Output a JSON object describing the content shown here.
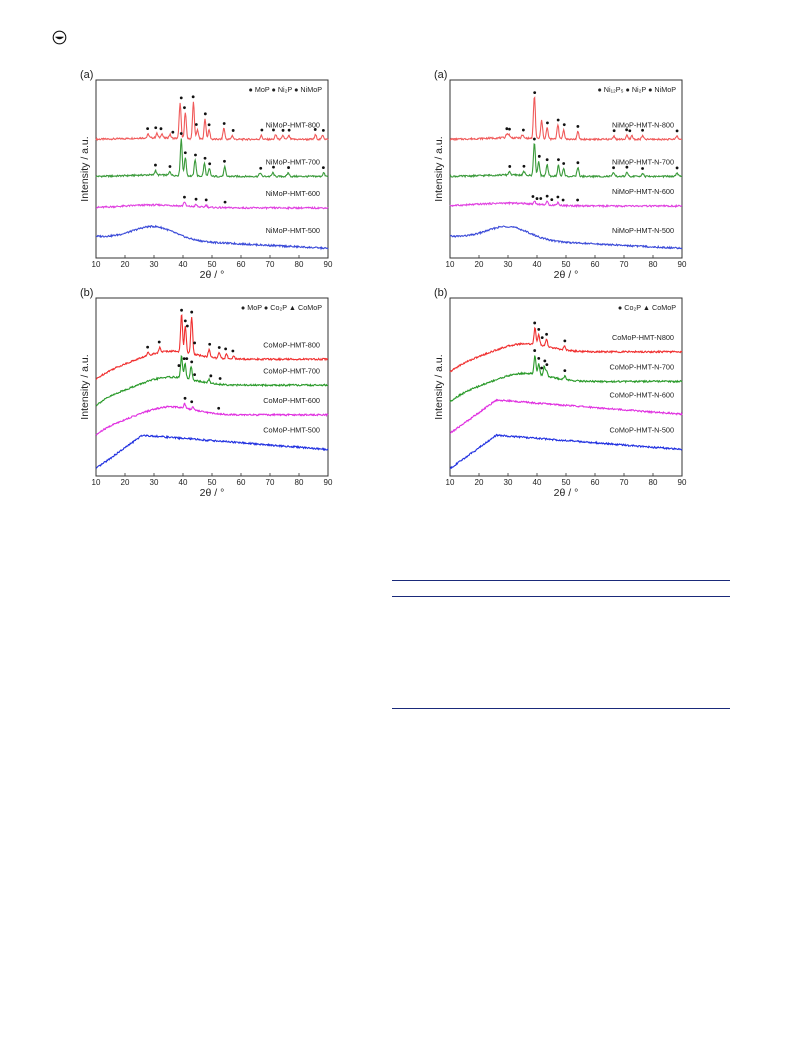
{
  "page": {
    "icon": "circle-logo-icon"
  },
  "chart_data": [
    {
      "id": "ni-hmt",
      "type": "line",
      "panel_label": "(a)",
      "ylabel": "Intensity / a.u.",
      "xlabel": "2θ / °",
      "xlim": [
        10,
        90
      ],
      "xticks": [
        10,
        20,
        30,
        40,
        50,
        60,
        70,
        80,
        90
      ],
      "legend": [
        {
          "symbol": "●",
          "text": "MoP"
        },
        {
          "symbol": "●",
          "text": "Ni₂P"
        },
        {
          "symbol": "●",
          "text": "NiMoP"
        }
      ],
      "series": [
        {
          "name": "NiMoP-HMT-800",
          "color": "#f05a5a",
          "offset": 3.0,
          "kind": "crystal",
          "peaks": [
            [
              28,
              0.1
            ],
            [
              31,
              0.12
            ],
            [
              32.7,
              0.12
            ],
            [
              35.5,
              0.1
            ],
            [
              39,
              0.95
            ],
            [
              40.8,
              0.7
            ],
            [
              43.6,
              1.0
            ],
            [
              45,
              0.25
            ],
            [
              47.6,
              0.55
            ],
            [
              49,
              0.25
            ],
            [
              54.1,
              0.3
            ],
            [
              57,
              0.1
            ],
            [
              67,
              0.1
            ],
            [
              72,
              0.12
            ],
            [
              74.5,
              0.1
            ],
            [
              76.5,
              0.1
            ],
            [
              85.7,
              0.12
            ],
            [
              88.2,
              0.12
            ]
          ]
        },
        {
          "name": "NiMoP-HMT-700",
          "color": "#3a9a3a",
          "offset": 2.0,
          "kind": "crystal",
          "peaks": [
            [
              30.5,
              0.12
            ],
            [
              35.5,
              0.1
            ],
            [
              39.4,
              1.0
            ],
            [
              40.8,
              0.5
            ],
            [
              44.2,
              0.45
            ],
            [
              47.4,
              0.35
            ],
            [
              49.1,
              0.2
            ],
            [
              54.4,
              0.25
            ],
            [
              66.6,
              0.1
            ],
            [
              71,
              0.1
            ],
            [
              76.3,
              0.1
            ],
            [
              88.5,
              0.1
            ]
          ]
        },
        {
          "name": "NiMoP-HMT-600",
          "color": "#e040e0",
          "offset": 1.15,
          "kind": "flat",
          "peaks": [
            [
              40.5,
              0.12
            ],
            [
              44.5,
              0.06
            ],
            [
              48,
              0.06
            ]
          ]
        },
        {
          "name": "NiMoP-HMT-500",
          "color": "#3a4ad8",
          "offset": 0.3,
          "kind": "amorphous",
          "peaks": []
        }
      ],
      "markers": [
        [
          27.8,
          "NiMoP-HMT-800"
        ],
        [
          30.6,
          "NiMoP-HMT-800"
        ],
        [
          32.4,
          "NiMoP-HMT-800"
        ],
        [
          36.5,
          "NiMoP-HMT-800"
        ],
        [
          39.4,
          "NiMoP-HMT-800"
        ],
        [
          40.5,
          "NiMoP-HMT-800"
        ],
        [
          43.5,
          "NiMoP-HMT-800"
        ],
        [
          44.6,
          "NiMoP-HMT-800"
        ],
        [
          47.7,
          "NiMoP-HMT-800"
        ],
        [
          49,
          "NiMoP-HMT-800"
        ],
        [
          54.2,
          "NiMoP-HMT-800"
        ],
        [
          57.3,
          "NiMoP-HMT-800"
        ],
        [
          67.2,
          "NiMoP-HMT-800"
        ],
        [
          71.2,
          "NiMoP-HMT-800"
        ],
        [
          74.5,
          "NiMoP-HMT-800"
        ],
        [
          76.6,
          "NiMoP-HMT-800"
        ],
        [
          85.6,
          "NiMoP-HMT-800"
        ],
        [
          88.4,
          "NiMoP-HMT-800"
        ],
        [
          30.5,
          "NiMoP-HMT-700"
        ],
        [
          35.5,
          "NiMoP-HMT-700"
        ],
        [
          39.4,
          "NiMoP-HMT-700"
        ],
        [
          40.8,
          "NiMoP-HMT-700"
        ],
        [
          44.3,
          "NiMoP-HMT-700"
        ],
        [
          47.6,
          "NiMoP-HMT-700"
        ],
        [
          49.2,
          "NiMoP-HMT-700"
        ],
        [
          54.3,
          "NiMoP-HMT-700"
        ],
        [
          66.8,
          "NiMoP-HMT-700"
        ],
        [
          71.2,
          "NiMoP-HMT-700"
        ],
        [
          76.4,
          "NiMoP-HMT-700"
        ],
        [
          88.4,
          "NiMoP-HMT-700"
        ],
        [
          40.5,
          "NiMoP-HMT-600"
        ],
        [
          44.5,
          "NiMoP-HMT-600"
        ],
        [
          48,
          "NiMoP-HMT-600"
        ],
        [
          54.5,
          "NiMoP-HMT-600"
        ]
      ]
    },
    {
      "id": "ni-hmt-n",
      "type": "line",
      "panel_label": "(a)",
      "ylabel": "Intensity / a.u.",
      "xlabel": "2θ / °",
      "xlim": [
        10,
        90
      ],
      "xticks": [
        10,
        20,
        30,
        40,
        50,
        60,
        70,
        80,
        90
      ],
      "legend": [
        {
          "symbol": "●",
          "text": "Ni₁₂P₅"
        },
        {
          "symbol": "●",
          "text": "Ni₂P"
        },
        {
          "symbol": "●",
          "text": "NiMoP"
        }
      ],
      "series": [
        {
          "name": "NiMoP-HMT-N-800",
          "color": "#f05a5a",
          "offset": 3.0,
          "kind": "crystal",
          "peaks": [
            [
              29.5,
              0.1
            ],
            [
              30.3,
              0.1
            ],
            [
              35,
              0.08
            ],
            [
              39.1,
              1.15
            ],
            [
              41.6,
              0.5
            ],
            [
              43.5,
              0.3
            ],
            [
              47.2,
              0.4
            ],
            [
              49.2,
              0.25
            ],
            [
              54.1,
              0.2
            ],
            [
              66.5,
              0.1
            ],
            [
              71,
              0.1
            ],
            [
              72.7,
              0.1
            ],
            [
              76.4,
              0.1
            ],
            [
              88.2,
              0.1
            ]
          ]
        },
        {
          "name": "NiMoP-HMT-N-700",
          "color": "#3a9a3a",
          "offset": 2.0,
          "kind": "crystal",
          "peaks": [
            [
              30.5,
              0.1
            ],
            [
              35.5,
              0.1
            ],
            [
              39.1,
              0.9
            ],
            [
              40.6,
              0.4
            ],
            [
              43.5,
              0.3
            ],
            [
              47.4,
              0.3
            ],
            [
              49.2,
              0.2
            ],
            [
              54.1,
              0.25
            ],
            [
              66.4,
              0.1
            ],
            [
              71,
              0.1
            ],
            [
              76.4,
              0.1
            ],
            [
              88.3,
              0.1
            ]
          ]
        },
        {
          "name": "NiMoP-HMT-N-600",
          "color": "#e040e0",
          "offset": 1.2,
          "kind": "flat",
          "peaks": [
            [
              39.2,
              0.08
            ],
            [
              43.5,
              0.08
            ],
            [
              47.2,
              0.08
            ]
          ]
        },
        {
          "name": "NiMoP-HMT-N-500",
          "color": "#3a4ad8",
          "offset": 0.3,
          "kind": "amorphous",
          "peaks": []
        }
      ],
      "markers": [
        [
          29.6,
          "NiMoP-HMT-N-800"
        ],
        [
          30.5,
          "NiMoP-HMT-N-800"
        ],
        [
          35.3,
          "NiMoP-HMT-N-800"
        ],
        [
          39.2,
          "NiMoP-HMT-N-800"
        ],
        [
          43.6,
          "NiMoP-HMT-N-800"
        ],
        [
          47.3,
          "NiMoP-HMT-N-800"
        ],
        [
          49.4,
          "NiMoP-HMT-N-800"
        ],
        [
          54.1,
          "NiMoP-HMT-N-800"
        ],
        [
          66.6,
          "NiMoP-HMT-N-800"
        ],
        [
          70.9,
          "NiMoP-HMT-N-800"
        ],
        [
          72,
          "NiMoP-HMT-N-800"
        ],
        [
          76.4,
          "NiMoP-HMT-N-800"
        ],
        [
          88.3,
          "NiMoP-HMT-N-800"
        ],
        [
          30.6,
          "NiMoP-HMT-N-700"
        ],
        [
          35.5,
          "NiMoP-HMT-N-700"
        ],
        [
          39.1,
          "NiMoP-HMT-N-700"
        ],
        [
          40.8,
          "NiMoP-HMT-N-700"
        ],
        [
          43.5,
          "NiMoP-HMT-N-700"
        ],
        [
          47.4,
          "NiMoP-HMT-N-700"
        ],
        [
          49.2,
          "NiMoP-HMT-N-700"
        ],
        [
          54.1,
          "NiMoP-HMT-N-700"
        ],
        [
          66.4,
          "NiMoP-HMT-N-700"
        ],
        [
          71,
          "NiMoP-HMT-N-700"
        ],
        [
          76.4,
          "NiMoP-HMT-N-700"
        ],
        [
          88.3,
          "NiMoP-HMT-N-700"
        ],
        [
          38.6,
          "NiMoP-HMT-N-600"
        ],
        [
          40,
          "NiMoP-HMT-N-600"
        ],
        [
          41.3,
          "NiMoP-HMT-N-600"
        ],
        [
          43.5,
          "NiMoP-HMT-N-600"
        ],
        [
          45.1,
          "NiMoP-HMT-N-600"
        ],
        [
          47.2,
          "NiMoP-HMT-N-600"
        ],
        [
          49,
          "NiMoP-HMT-N-600"
        ],
        [
          54,
          "NiMoP-HMT-N-600"
        ]
      ]
    },
    {
      "id": "co-hmt",
      "type": "line",
      "panel_label": "(b)",
      "ylabel": "Intensity / a.u.",
      "xlabel": "2θ / °",
      "xlim": [
        10,
        90
      ],
      "xticks": [
        10,
        20,
        30,
        40,
        50,
        60,
        70,
        80,
        90
      ],
      "legend": [
        {
          "symbol": "●",
          "text": "MoP"
        },
        {
          "symbol": "●",
          "text": "Co₂P"
        },
        {
          "symbol": "▲",
          "text": "CoMoP"
        }
      ],
      "series": [
        {
          "name": "CoMoP-HMT-800",
          "color": "#f03030",
          "offset": 2.4,
          "kind": "rising",
          "peaks": [
            [
              28,
              0.08
            ],
            [
              32,
              0.12
            ],
            [
              39.5,
              1.05
            ],
            [
              40.8,
              0.7
            ],
            [
              43,
              1.0
            ],
            [
              49,
              0.2
            ],
            [
              52.5,
              0.15
            ],
            [
              55,
              0.12
            ],
            [
              57.5,
              0.1
            ]
          ]
        },
        {
          "name": "CoMoP-HMT-700",
          "color": "#2a9a2a",
          "offset": 1.7,
          "kind": "rising",
          "peaks": [
            [
              39.5,
              0.6
            ],
            [
              40.7,
              0.4
            ],
            [
              42.8,
              0.35
            ],
            [
              49,
              0.1
            ]
          ]
        },
        {
          "name": "CoMoP-HMT-600",
          "color": "#e030e0",
          "offset": 0.9,
          "kind": "rising",
          "peaks": [
            [
              40.6,
              0.12
            ],
            [
              43.5,
              0.08
            ]
          ]
        },
        {
          "name": "CoMoP-HMT-500",
          "color": "#2030e0",
          "offset": 0.0,
          "kind": "hump",
          "peaks": []
        }
      ],
      "markers": [
        [
          27.8,
          "CoMoP-HMT-800"
        ],
        [
          31.8,
          "CoMoP-HMT-800"
        ],
        [
          39.5,
          "CoMoP-HMT-800"
        ],
        [
          40.8,
          "CoMoP-HMT-800"
        ],
        [
          41.5,
          "CoMoP-HMT-800"
        ],
        [
          43,
          "CoMoP-HMT-800"
        ],
        [
          44,
          "CoMoP-HMT-800"
        ],
        [
          49.2,
          "CoMoP-HMT-800"
        ],
        [
          52.5,
          "CoMoP-HMT-800"
        ],
        [
          54.7,
          "CoMoP-HMT-800"
        ],
        [
          57.2,
          "CoMoP-HMT-800"
        ],
        [
          38.6,
          "CoMoP-HMT-700"
        ],
        [
          40.4,
          "CoMoP-HMT-700"
        ],
        [
          41.3,
          "CoMoP-HMT-700"
        ],
        [
          43,
          "CoMoP-HMT-700"
        ],
        [
          44,
          "CoMoP-HMT-700"
        ],
        [
          49.6,
          "CoMoP-HMT-700"
        ],
        [
          52.8,
          "CoMoP-HMT-700"
        ],
        [
          40.7,
          "CoMoP-HMT-600"
        ],
        [
          43,
          "CoMoP-HMT-600"
        ],
        [
          52.3,
          "CoMoP-HMT-600"
        ]
      ]
    },
    {
      "id": "co-hmt-n",
      "type": "line",
      "panel_label": "(b)",
      "ylabel": "Intensity / a.u.",
      "xlabel": "2θ / °",
      "xlim": [
        10,
        90
      ],
      "xticks": [
        10,
        20,
        30,
        40,
        50,
        60,
        70,
        80,
        90
      ],
      "legend": [
        {
          "symbol": "●",
          "text": "Co₂P"
        },
        {
          "symbol": "▲",
          "text": "CoMoP"
        }
      ],
      "series": [
        {
          "name": "CoMoP-HMT-N800",
          "color": "#f03030",
          "offset": 2.6,
          "kind": "rising",
          "peaks": [
            [
              39.3,
              0.45
            ],
            [
              40.6,
              0.3
            ],
            [
              43.3,
              0.2
            ],
            [
              49.5,
              0.1
            ]
          ]
        },
        {
          "name": "CoMoP-HMT-N-700",
          "color": "#2a9a2a",
          "offset": 1.8,
          "kind": "rising",
          "peaks": [
            [
              39.3,
              0.5
            ],
            [
              40.6,
              0.3
            ],
            [
              42.5,
              0.25
            ],
            [
              43.3,
              0.15
            ],
            [
              49.6,
              0.1
            ]
          ]
        },
        {
          "name": "CoMoP-HMT-N-600",
          "color": "#e030e0",
          "offset": 0.95,
          "kind": "hump",
          "peaks": []
        },
        {
          "name": "CoMoP-HMT-N-500",
          "color": "#2030e0",
          "offset": 0.0,
          "kind": "hump",
          "peaks": []
        }
      ],
      "markers": [
        [
          39.2,
          "CoMoP-HMT-N800"
        ],
        [
          40.6,
          "CoMoP-HMT-N800"
        ],
        [
          41.8,
          "CoMoP-HMT-N800"
        ],
        [
          43.3,
          "CoMoP-HMT-N800"
        ],
        [
          49.6,
          "CoMoP-HMT-N800"
        ],
        [
          39.2,
          "CoMoP-HMT-N-700"
        ],
        [
          40.6,
          "CoMoP-HMT-N-700"
        ],
        [
          41.6,
          "CoMoP-HMT-N-700"
        ],
        [
          42.7,
          "CoMoP-HMT-N-700"
        ],
        [
          43.4,
          "CoMoP-HMT-N-700"
        ],
        [
          49.6,
          "CoMoP-HMT-N-700"
        ]
      ]
    }
  ]
}
